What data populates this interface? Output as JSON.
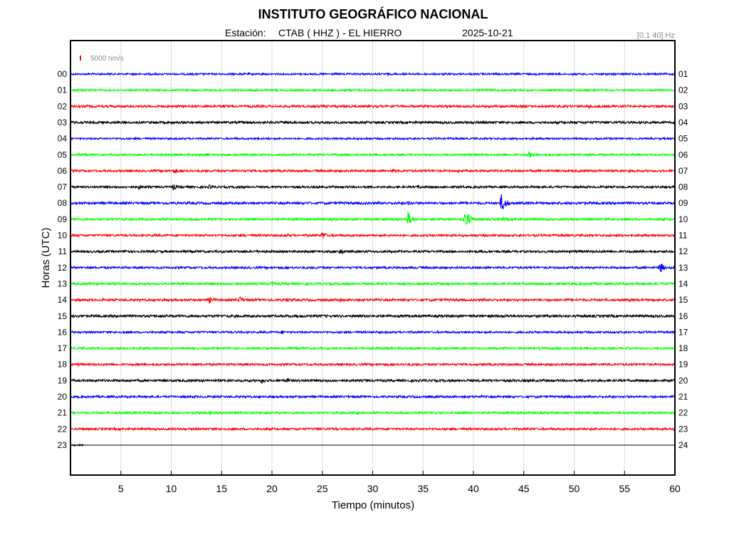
{
  "header": {
    "title": "INSTITUTO GEOGRÁFICO NACIONAL",
    "station_label": "Estación:",
    "station": "CTAB ( HHZ ) - EL HIERRO",
    "date": "2025-10-21",
    "filter": "[0.1 40] Hz"
  },
  "scale": {
    "label": "5000 nm/s",
    "color": "#ff0000"
  },
  "chart_data": {
    "type": "line",
    "title": "INSTITUTO GEOGRÁFICO NACIONAL",
    "xlabel": "Tiempo (minutos)",
    "ylabel": "Horas (UTC)",
    "xlim": [
      0,
      60
    ],
    "x_ticks": [
      "5",
      "10",
      "15",
      "20",
      "25",
      "30",
      "35",
      "40",
      "45",
      "50",
      "55",
      "60"
    ],
    "grid": true,
    "colors": [
      "#0000ff",
      "#00ff00",
      "#ff0000",
      "#000000"
    ],
    "left_labels": [
      "00",
      "01",
      "02",
      "03",
      "04",
      "05",
      "06",
      "07",
      "08",
      "09",
      "10",
      "11",
      "12",
      "13",
      "14",
      "15",
      "16",
      "17",
      "18",
      "19",
      "20",
      "21",
      "22",
      "23"
    ],
    "right_labels": [
      "01",
      "02",
      "03",
      "04",
      "05",
      "06",
      "07",
      "08",
      "09",
      "10",
      "11",
      "12",
      "13",
      "14",
      "15",
      "16",
      "17",
      "18",
      "19",
      "20",
      "21",
      "22",
      "23",
      "24"
    ],
    "traces": [
      {
        "hour": "00",
        "color": "#0000ff",
        "noise": 1.3,
        "data_until_min": 60,
        "events": [
          {
            "t": 58.5,
            "amp": 2
          }
        ]
      },
      {
        "hour": "01",
        "color": "#00ff00",
        "noise": 1.3,
        "data_until_min": 60,
        "events": []
      },
      {
        "hour": "02",
        "color": "#ff0000",
        "noise": 1.6,
        "data_until_min": 60,
        "events": [
          {
            "t": 15.2,
            "amp": 3
          },
          {
            "t": 51.5,
            "amp": 3.5
          }
        ]
      },
      {
        "hour": "03",
        "color": "#000000",
        "noise": 1.7,
        "data_until_min": 60,
        "events": [
          {
            "t": 41,
            "amp": 2.5
          }
        ]
      },
      {
        "hour": "04",
        "color": "#0000ff",
        "noise": 1.3,
        "data_until_min": 60,
        "events": []
      },
      {
        "hour": "05",
        "color": "#00ff00",
        "noise": 1.4,
        "data_until_min": 60,
        "events": [
          {
            "t": 13.5,
            "amp": 3
          },
          {
            "t": 28.5,
            "amp": 2.5
          },
          {
            "t": 45.5,
            "amp": 5
          }
        ]
      },
      {
        "hour": "06",
        "color": "#ff0000",
        "noise": 1.5,
        "data_until_min": 60,
        "events": [
          {
            "t": 10.3,
            "amp": 4.5
          },
          {
            "t": 32,
            "amp": 3.5
          },
          {
            "t": 38.5,
            "amp": 3
          },
          {
            "t": 55.5,
            "amp": 3.5
          }
        ]
      },
      {
        "hour": "07",
        "color": "#000000",
        "noise": 1.5,
        "data_until_min": 60,
        "events": [
          {
            "t": 6.8,
            "amp": 4
          },
          {
            "t": 10.2,
            "amp": 5
          },
          {
            "t": 13.8,
            "amp": 3.5
          },
          {
            "t": 16.5,
            "amp": 3
          },
          {
            "t": 34.5,
            "amp": 3
          },
          {
            "t": 52,
            "amp": 2.5
          },
          {
            "t": 55,
            "amp": 2.5
          }
        ]
      },
      {
        "hour": "08",
        "color": "#0000ff",
        "noise": 1.7,
        "data_until_min": 60,
        "events": [
          {
            "t": 33.5,
            "amp": 4
          },
          {
            "t": 42.8,
            "amp": 14
          }
        ]
      },
      {
        "hour": "09",
        "color": "#00ff00",
        "noise": 1.6,
        "data_until_min": 60,
        "events": [
          {
            "t": 33.5,
            "amp": 11
          },
          {
            "t": 39.2,
            "amp": 15
          },
          {
            "t": 43,
            "amp": 4
          },
          {
            "t": 54,
            "amp": 2.5
          }
        ]
      },
      {
        "hour": "10",
        "color": "#ff0000",
        "noise": 1.5,
        "data_until_min": 60,
        "events": [
          {
            "t": 21.5,
            "amp": 3
          },
          {
            "t": 25,
            "amp": 6
          }
        ]
      },
      {
        "hour": "11",
        "color": "#000000",
        "noise": 1.6,
        "data_until_min": 60,
        "events": [
          {
            "t": 5.5,
            "amp": 4
          },
          {
            "t": 26.8,
            "amp": 5
          }
        ]
      },
      {
        "hour": "12",
        "color": "#0000ff",
        "noise": 1.5,
        "data_until_min": 60,
        "events": [
          {
            "t": 58.5,
            "amp": 9
          }
        ]
      },
      {
        "hour": "13",
        "color": "#00ff00",
        "noise": 1.6,
        "data_until_min": 60,
        "events": [
          {
            "t": 20,
            "amp": 4
          },
          {
            "t": 23.5,
            "amp": 2.5
          },
          {
            "t": 27,
            "amp": 2.5
          }
        ]
      },
      {
        "hour": "14",
        "color": "#ff0000",
        "noise": 1.6,
        "data_until_min": 60,
        "events": [
          {
            "t": 13.8,
            "amp": 5
          },
          {
            "t": 16.8,
            "amp": 5.5
          },
          {
            "t": 21.5,
            "amp": 3.5
          },
          {
            "t": 26.8,
            "amp": 3.5
          },
          {
            "t": 55.5,
            "amp": 2.5
          }
        ]
      },
      {
        "hour": "15",
        "color": "#000000",
        "noise": 1.8,
        "data_until_min": 60,
        "events": []
      },
      {
        "hour": "16",
        "color": "#0000ff",
        "noise": 1.4,
        "data_until_min": 60,
        "events": [
          {
            "t": 21,
            "amp": 3
          }
        ]
      },
      {
        "hour": "17",
        "color": "#00ff00",
        "noise": 1.4,
        "data_until_min": 60,
        "events": [
          {
            "t": 46.5,
            "amp": 3
          }
        ]
      },
      {
        "hour": "18",
        "color": "#ff0000",
        "noise": 1.5,
        "data_until_min": 60,
        "events": [
          {
            "t": 15.5,
            "amp": 2
          },
          {
            "t": 31,
            "amp": 2
          }
        ]
      },
      {
        "hour": "19",
        "color": "#000000",
        "noise": 1.7,
        "data_until_min": 60,
        "events": [
          {
            "t": 19,
            "amp": 4.5
          },
          {
            "t": 21.5,
            "amp": 3.5
          }
        ]
      },
      {
        "hour": "20",
        "color": "#0000ff",
        "noise": 1.5,
        "data_until_min": 60,
        "events": []
      },
      {
        "hour": "21",
        "color": "#00ff00",
        "noise": 1.5,
        "data_until_min": 60,
        "events": [
          {
            "t": 13.8,
            "amp": 3
          },
          {
            "t": 28.5,
            "amp": 2.5
          },
          {
            "t": 50.5,
            "amp": 2
          }
        ]
      },
      {
        "hour": "22",
        "color": "#ff0000",
        "noise": 1.5,
        "data_until_min": 60,
        "events": []
      },
      {
        "hour": "23",
        "color": "#000000",
        "noise": 1.2,
        "data_until_min": 1.3,
        "events": []
      }
    ]
  }
}
